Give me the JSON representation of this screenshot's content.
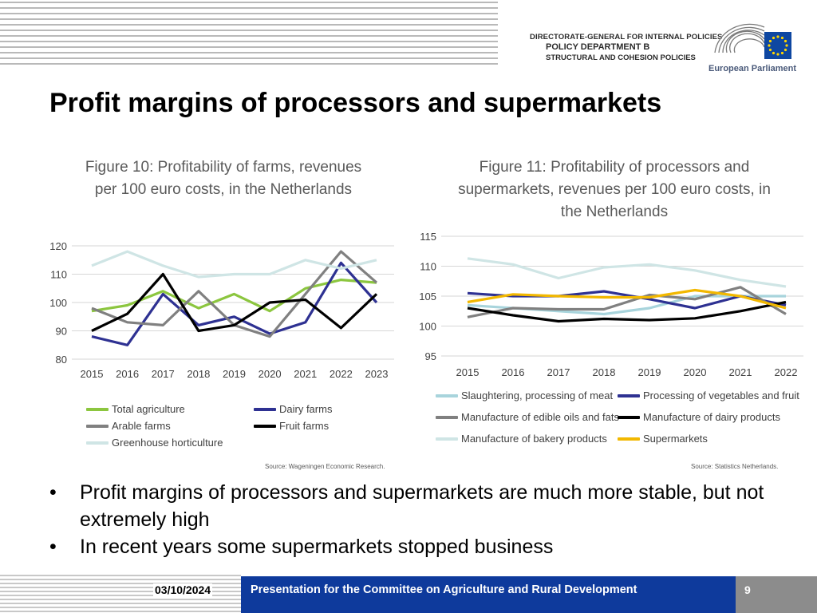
{
  "header": {
    "line1": "DIRECTORATE-GENERAL FOR INTERNAL POLICIES",
    "line2": "POLICY DEPARTMENT B",
    "line3": "STRUCTURAL AND COHESION POLICIES",
    "logo_text": "European Parliament",
    "logo_colors": {
      "flag": "#0e47a1",
      "stars": "#ffd600",
      "arcs": "#7a7a7a"
    }
  },
  "title": "Profit margins of processors and supermarkets",
  "figure10": {
    "title": "Figure 10: Profitability of farms, revenues per 100 euro costs, in the Netherlands",
    "source": "Source: Wageningen Economic Research."
  },
  "figure11": {
    "title": "Figure 11: Profitability of processors and supermarkets, revenues per 100 euro costs, in the Netherlands",
    "source": "Source: Statistics Netherlands."
  },
  "chart_data": [
    {
      "type": "line",
      "title": "Figure 10: Profitability of farms, revenues per 100 euro costs, in the Netherlands",
      "x": [
        "2015",
        "2016",
        "2017",
        "2018",
        "2019",
        "2020",
        "2021",
        "2022",
        "2023"
      ],
      "ylim": [
        80,
        120
      ],
      "yticks": [
        80,
        90,
        100,
        110,
        120
      ],
      "grid": true,
      "legend_placement": "bottom",
      "series": [
        {
          "name": "Total agriculture",
          "color": "#8cc63f",
          "values": [
            97,
            99,
            104,
            98,
            103,
            97,
            105,
            108,
            107
          ]
        },
        {
          "name": "Dairy farms",
          "color": "#2e3192",
          "values": [
            88,
            85,
            103,
            92,
            95,
            89,
            93,
            114,
            100
          ]
        },
        {
          "name": "Arable farms",
          "color": "#808080",
          "values": [
            98,
            93,
            92,
            104,
            92,
            88,
            103,
            118,
            107
          ]
        },
        {
          "name": "Fruit farms",
          "color": "#000000",
          "values": [
            90,
            96,
            110,
            90,
            92,
            100,
            101,
            91,
            103
          ]
        },
        {
          "name": "Greenhouse horticulture",
          "color": "#cfe5e5",
          "values": [
            113,
            118,
            113,
            109,
            110,
            110,
            115,
            112,
            115
          ]
        }
      ]
    },
    {
      "type": "line",
      "title": "Figure 11: Profitability of processors and supermarkets, revenues per 100 euro costs, in the Netherlands",
      "x": [
        "2015",
        "2016",
        "2017",
        "2018",
        "2019",
        "2020",
        "2021",
        "2022"
      ],
      "ylim": [
        95,
        115
      ],
      "yticks": [
        95,
        100,
        105,
        110,
        115
      ],
      "grid": true,
      "legend_placement": "bottom",
      "series": [
        {
          "name": "Slaughtering, processing of meat",
          "color": "#a8d4dc",
          "values": [
            103.5,
            103,
            102.5,
            102,
            103,
            105,
            105,
            105
          ]
        },
        {
          "name": "Processing of vegetables and fruit",
          "color": "#2e3192",
          "values": [
            105.5,
            105,
            105,
            105.8,
            104.5,
            103,
            105,
            103.5
          ]
        },
        {
          "name": "Manufacture of edible oils and fats",
          "color": "#808080",
          "values": [
            101.5,
            103,
            102.8,
            102.8,
            105.2,
            104.5,
            106.5,
            102
          ]
        },
        {
          "name": "Manufacture of dairy products",
          "color": "#000000",
          "values": [
            103,
            101.8,
            100.8,
            101.2,
            101,
            101.3,
            102.5,
            104
          ]
        },
        {
          "name": "Manufacture of bakery products",
          "color": "#cfe5e5",
          "values": [
            111.3,
            110.3,
            108,
            109.8,
            110.3,
            109.3,
            107.7,
            106.6
          ]
        },
        {
          "name": "Supermarkets",
          "color": "#f2b800",
          "values": [
            104,
            105.3,
            105,
            104.8,
            104.8,
            106,
            105,
            103
          ]
        }
      ]
    }
  ],
  "bullets": [
    "Profit margins of processors and supermarkets are much more stable, but not extremely high",
    "In recent years some supermarkets stopped business"
  ],
  "footer": {
    "date": "03/10/2024",
    "text": "Presentation for the Committee on Agriculture and Rural Development",
    "page": "9"
  }
}
